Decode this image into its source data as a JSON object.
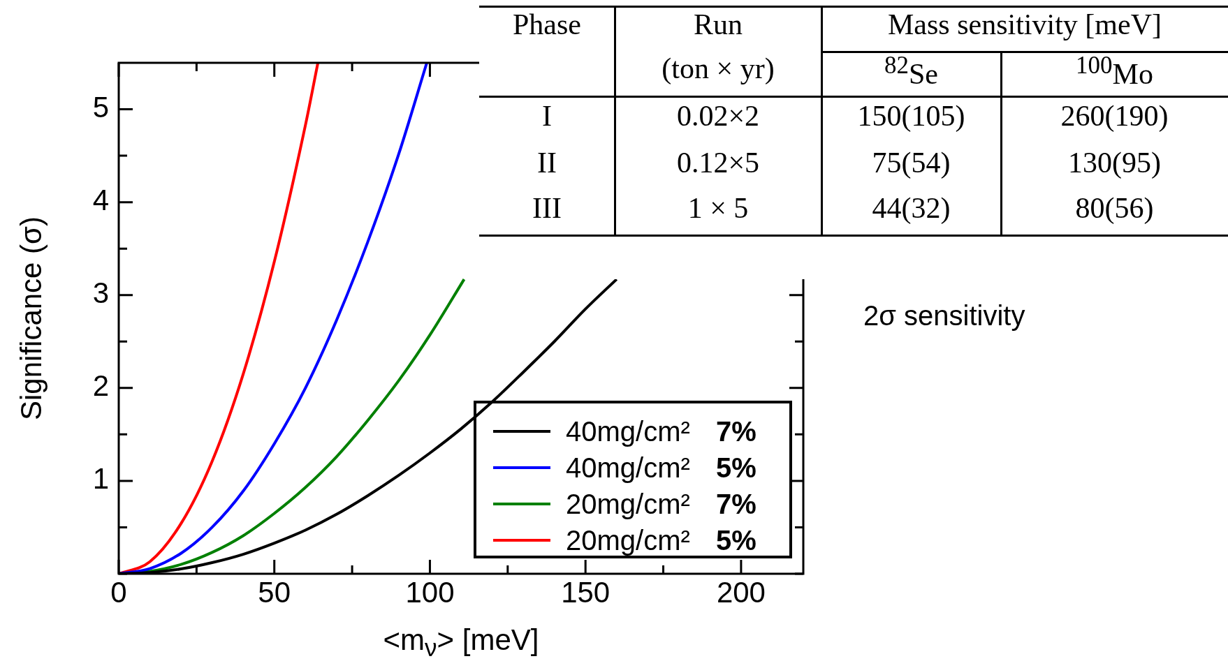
{
  "chart_data": [
    {
      "type": "line",
      "xlabel": "<m$_{ν}$> [meV]",
      "ylabel": "Significance (σ)",
      "xlim": [
        0,
        220
      ],
      "ylim": [
        0,
        5.5
      ],
      "xticks": [
        0,
        {
          "value": 25,
          "label": null
        },
        50,
        {
          "value": 75,
          "label": null
        },
        100,
        {
          "value": 125,
          "label": null
        },
        150,
        {
          "value": 175,
          "label": null
        },
        200
      ],
      "yticks": [
        {
          "value": 0,
          "label": null
        },
        {
          "value": 0.5,
          "label": null
        },
        1,
        {
          "value": 1.5,
          "label": null
        },
        2,
        {
          "value": 2.5,
          "label": null
        },
        3,
        {
          "value": 3.5,
          "label": null
        },
        4,
        {
          "value": 4.5,
          "label": null
        },
        5
      ],
      "legend": "bottom right",
      "series": [
        {
          "name": "40mg/cm² 7%",
          "color": "#000000",
          "x": [
            0,
            10,
            20,
            30,
            40,
            50,
            60,
            70,
            80,
            90,
            100,
            110,
            120,
            130,
            140,
            150,
            160
          ],
          "values": [
            0,
            0.013,
            0.052,
            0.12,
            0.21,
            0.33,
            0.47,
            0.64,
            0.84,
            1.06,
            1.3,
            1.56,
            1.85,
            2.17,
            2.5,
            2.85,
            3.17
          ]
        },
        {
          "name": "40mg/cm² 5%",
          "color": "#0000ff",
          "x": [
            0,
            10,
            20,
            30,
            40,
            50,
            60,
            70,
            80,
            90,
            99
          ],
          "values": [
            0,
            0.056,
            0.22,
            0.5,
            0.89,
            1.4,
            2.0,
            2.73,
            3.57,
            4.52,
            5.5
          ]
        },
        {
          "name": "20mg/cm² 7%",
          "color": "#008000",
          "x": [
            0,
            10,
            20,
            30,
            40,
            50,
            60,
            70,
            80,
            90,
            100,
            111
          ],
          "values": [
            0,
            0.026,
            0.1,
            0.23,
            0.41,
            0.65,
            0.93,
            1.26,
            1.65,
            2.08,
            2.57,
            3.17
          ]
        },
        {
          "name": "20mg/cm² 5%",
          "color": "#ff0000",
          "x": [
            0,
            10,
            20,
            30,
            40,
            50,
            60,
            64
          ],
          "values": [
            0,
            0.13,
            0.54,
            1.21,
            2.15,
            3.36,
            4.83,
            5.5
          ]
        }
      ]
    },
    {
      "type": "other",
      "annotations": [
        "Phase",
        "Run",
        "(ton × yr)",
        "Mass sensitivity [meV]",
        "$^{82}$Se",
        "$^{100}$Mo",
        "I",
        "0.02×2",
        "150(105)",
        "260(190)",
        "II",
        "0.12×5",
        "75(54)",
        "130(95)",
        "III",
        "1 × 5",
        "44(32)",
        "80(56)",
        "2σ sensitivity"
      ]
    }
  ]
}
